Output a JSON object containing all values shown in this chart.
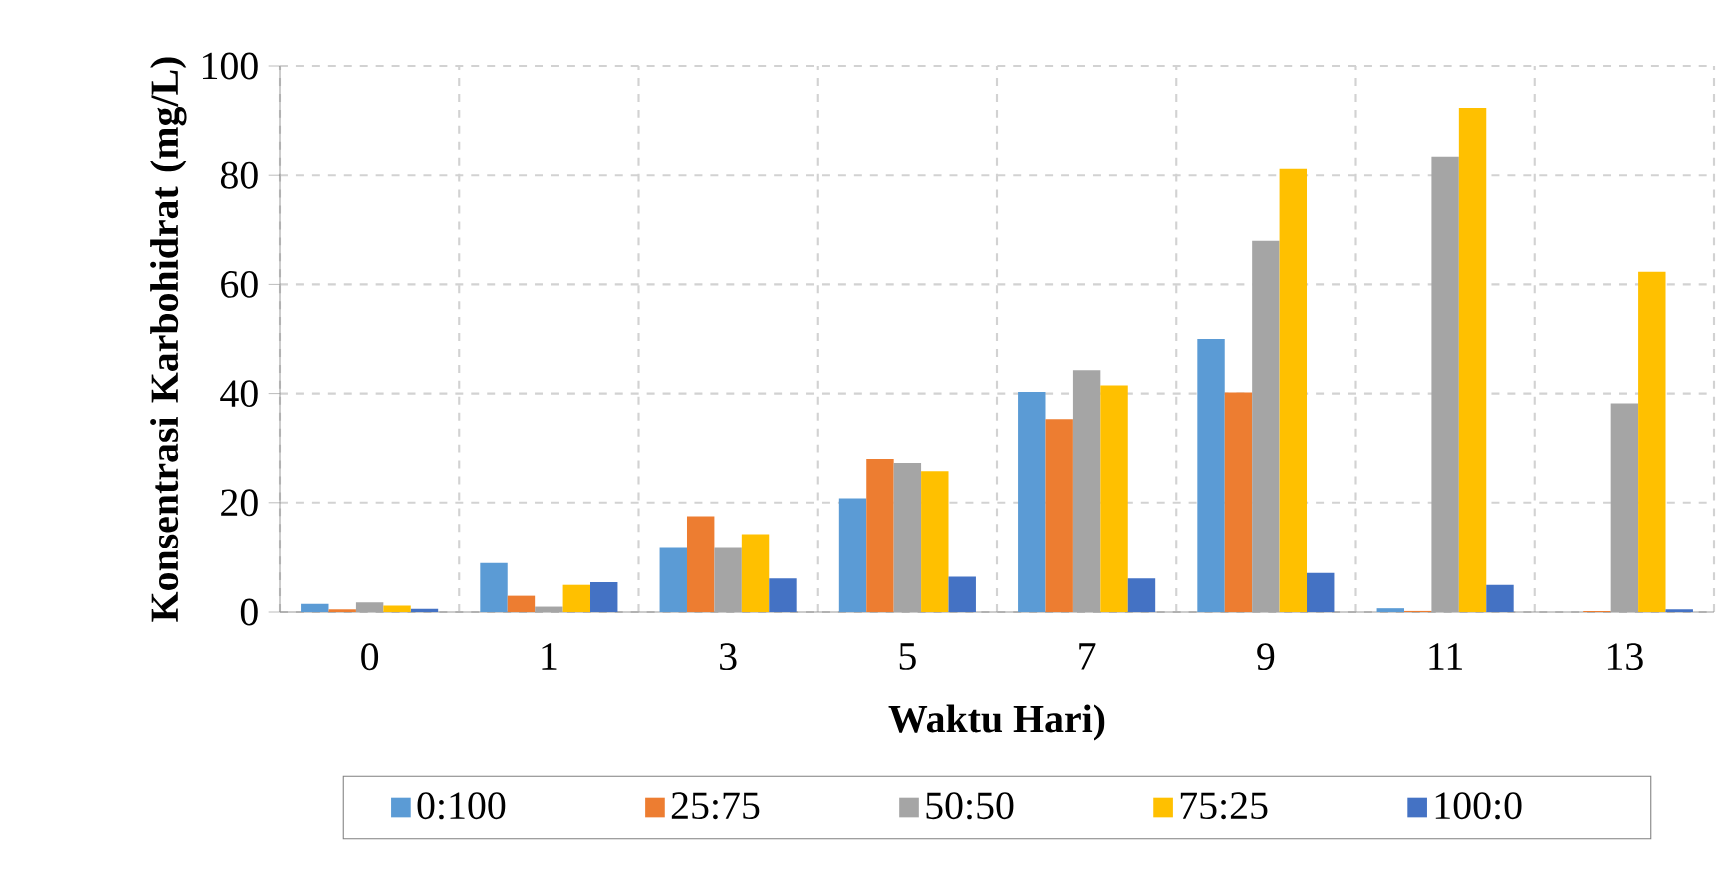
{
  "chart_data": {
    "type": "bar",
    "xlabel": "Waktu Hari)",
    "ylabel": "Konsentrasi Karbohidrat (mg/L)",
    "categories": [
      "0",
      "1",
      "3",
      "5",
      "7",
      "9",
      "11",
      "13"
    ],
    "series": [
      {
        "name": "0:100",
        "color": "#5b9bd5",
        "values": [
          1.5,
          9,
          11.8,
          20.8,
          40.3,
          50,
          0.7,
          0
        ]
      },
      {
        "name": "25:75",
        "color": "#ed7d31",
        "values": [
          0.5,
          3,
          17.5,
          28,
          35.3,
          40.2,
          0.2,
          0.2
        ]
      },
      {
        "name": "50:50",
        "color": "#a5a5a5",
        "values": [
          1.8,
          1,
          11.8,
          27.3,
          44.3,
          68,
          83.4,
          38.2
        ]
      },
      {
        "name": "75:25",
        "color": "#ffc000",
        "values": [
          1.2,
          5,
          14.2,
          25.8,
          41.5,
          81.2,
          92.3,
          62.3
        ]
      },
      {
        "name": "100:0",
        "color": "#4472c4",
        "values": [
          0.6,
          5.5,
          6.2,
          6.5,
          6.2,
          7.2,
          5,
          0.5
        ]
      }
    ],
    "ylim": [
      0,
      100
    ],
    "yticks": [
      0,
      20,
      40,
      60,
      80,
      100
    ],
    "grid": true,
    "legend": "bottom"
  }
}
